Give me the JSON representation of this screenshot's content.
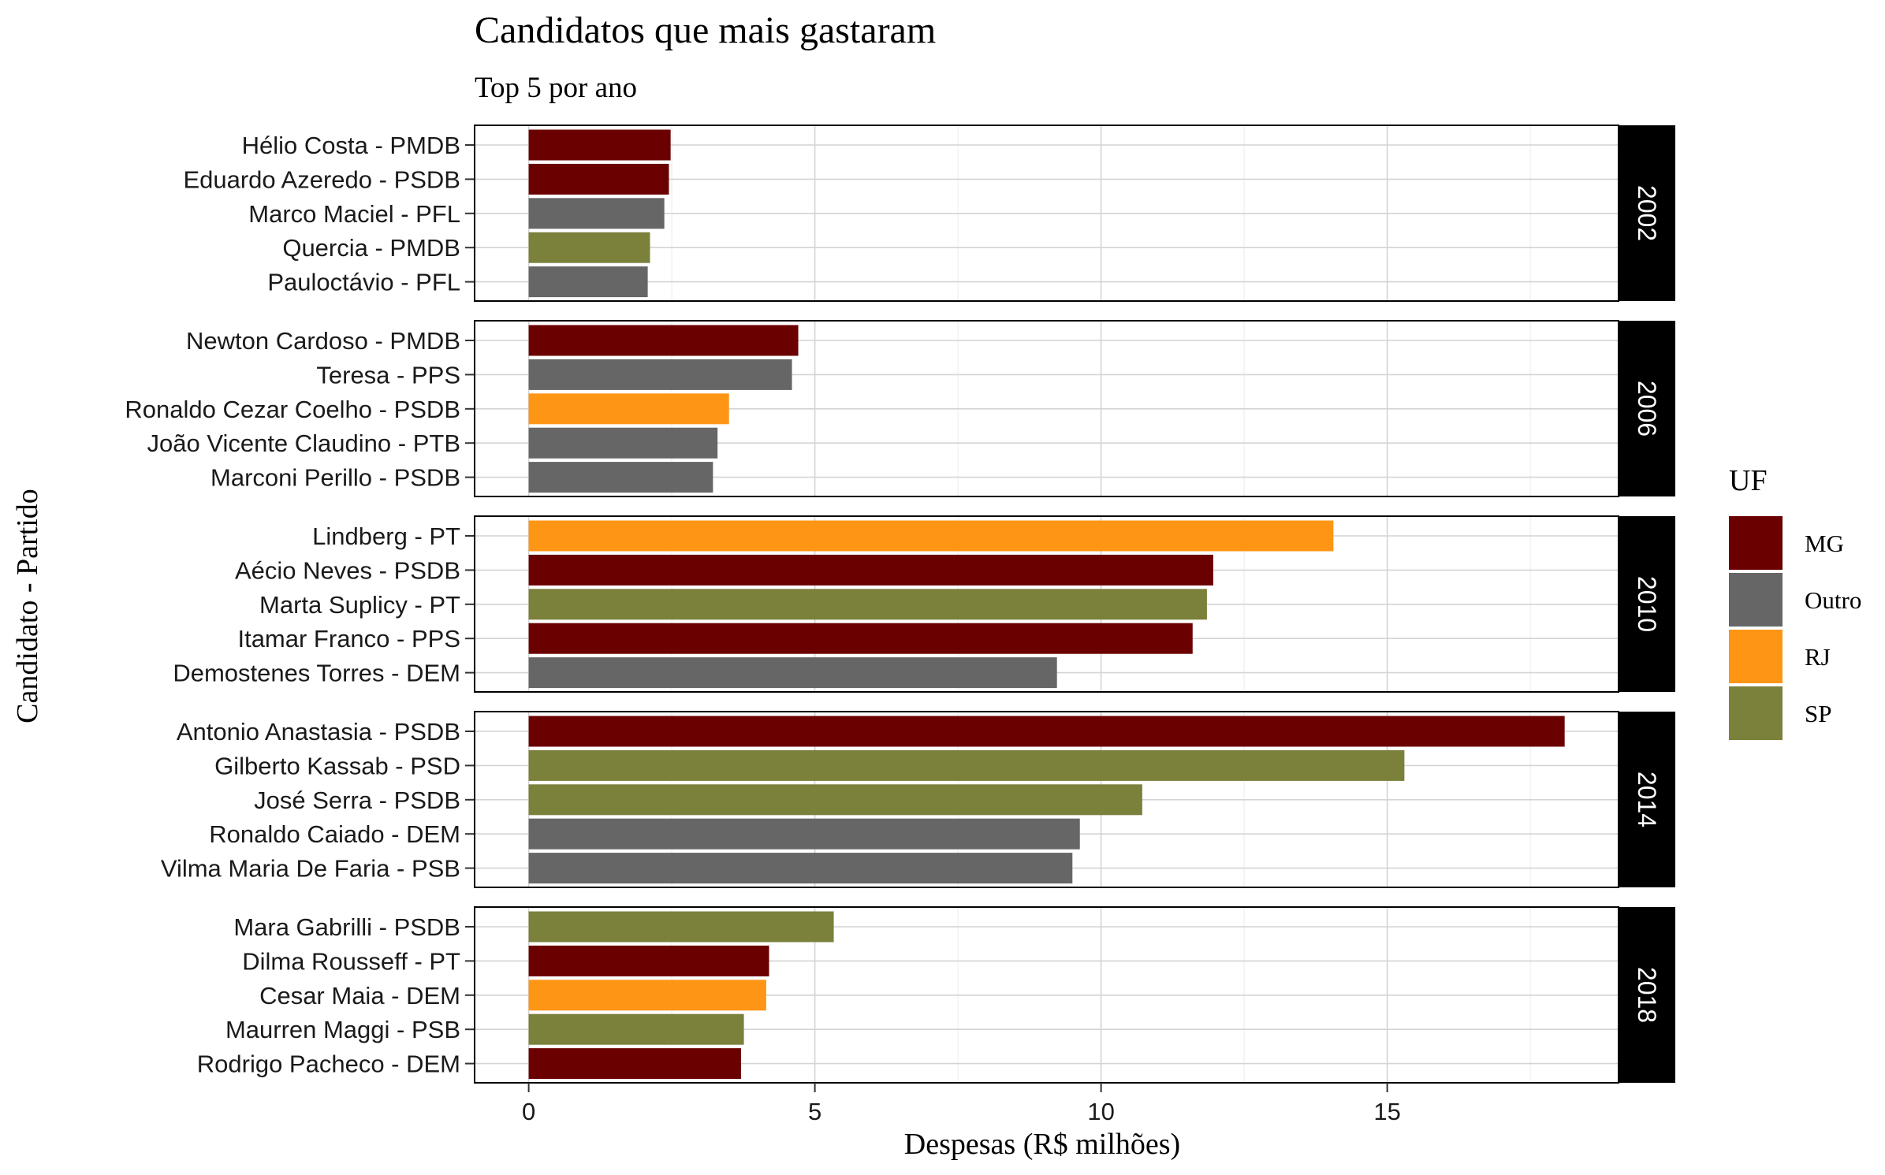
{
  "chart_data": {
    "type": "bar",
    "orientation": "horizontal",
    "faceted_by": "year",
    "title": "Candidatos que mais gastaram",
    "subtitle": "Top 5 por ano",
    "xlabel": "Despesas (R$ milhões)",
    "ylabel": "Candidato - Partido",
    "xlim": [
      -0.9,
      19.1
    ],
    "xticks": [
      0,
      5,
      10,
      15
    ],
    "xtick_labels": [
      "0",
      "5",
      "10",
      "15"
    ],
    "grid": true,
    "legend": {
      "title": "UF",
      "position": "right",
      "entries": [
        {
          "label": "MG",
          "color": "#6b0000"
        },
        {
          "label": "Outro",
          "color": "#666666"
        },
        {
          "label": "RJ",
          "color": "#ff9515"
        },
        {
          "label": "SP",
          "color": "#7b803b"
        }
      ]
    },
    "panels": [
      {
        "facet": "2002",
        "bars": [
          {
            "label": "Hélio Costa - PMDB",
            "value": 2.48,
            "uf": "MG"
          },
          {
            "label": "Eduardo Azeredo - PSDB",
            "value": 2.45,
            "uf": "MG"
          },
          {
            "label": "Marco Maciel - PFL",
            "value": 2.37,
            "uf": "Outro"
          },
          {
            "label": "Quercia - PMDB",
            "value": 2.12,
            "uf": "SP"
          },
          {
            "label": "Pauloctávio - PFL",
            "value": 2.08,
            "uf": "Outro"
          }
        ]
      },
      {
        "facet": "2006",
        "bars": [
          {
            "label": "Newton Cardoso - PMDB",
            "value": 4.71,
            "uf": "MG"
          },
          {
            "label": "Teresa - PPS",
            "value": 4.6,
            "uf": "Outro"
          },
          {
            "label": "Ronaldo Cezar Coelho - PSDB",
            "value": 3.5,
            "uf": "RJ"
          },
          {
            "label": "João Vicente Claudino - PTB",
            "value": 3.3,
            "uf": "Outro"
          },
          {
            "label": "Marconi Perillo - PSDB",
            "value": 3.22,
            "uf": "Outro"
          }
        ]
      },
      {
        "facet": "2010",
        "bars": [
          {
            "label": "Lindberg - PT",
            "value": 14.06,
            "uf": "RJ"
          },
          {
            "label": "Aécio Neves - PSDB",
            "value": 11.96,
            "uf": "MG"
          },
          {
            "label": "Marta Suplicy - PT",
            "value": 11.85,
            "uf": "SP"
          },
          {
            "label": "Itamar Franco - PPS",
            "value": 11.6,
            "uf": "MG"
          },
          {
            "label": "Demostenes Torres - DEM",
            "value": 9.23,
            "uf": "Outro"
          }
        ]
      },
      {
        "facet": "2014",
        "bars": [
          {
            "label": "Antonio Anastasia - PSDB",
            "value": 18.1,
            "uf": "MG"
          },
          {
            "label": "Gilberto Kassab - PSD",
            "value": 15.3,
            "uf": "SP"
          },
          {
            "label": "José Serra - PSDB",
            "value": 10.72,
            "uf": "SP"
          },
          {
            "label": "Ronaldo Caiado - DEM",
            "value": 9.63,
            "uf": "Outro"
          },
          {
            "label": "Vilma Maria De Faria - PSB",
            "value": 9.5,
            "uf": "Outro"
          }
        ]
      },
      {
        "facet": "2018",
        "bars": [
          {
            "label": "Mara Gabrilli - PSDB",
            "value": 5.33,
            "uf": "SP"
          },
          {
            "label": "Dilma Rousseff - PT",
            "value": 4.2,
            "uf": "MG"
          },
          {
            "label": "Cesar Maia - DEM",
            "value": 4.15,
            "uf": "RJ"
          },
          {
            "label": "Maurren Maggi - PSB",
            "value": 3.76,
            "uf": "SP"
          },
          {
            "label": "Rodrigo Pacheco - DEM",
            "value": 3.71,
            "uf": "MG"
          }
        ]
      }
    ]
  }
}
